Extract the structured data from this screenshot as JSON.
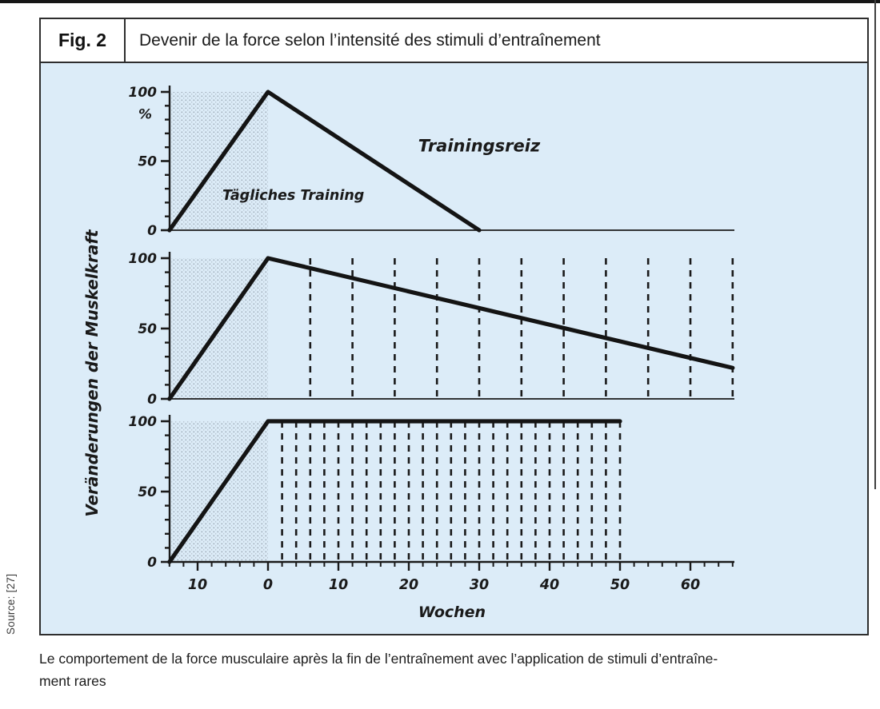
{
  "figure": {
    "label": "Fig. 2",
    "title": "Devenir de la force selon l’intensité des stimuli d’entraînement"
  },
  "source": "Source: [27]",
  "caption": {
    "line1": "Le comportement de la force musculaire après la fin de l’entraînement avec l’application de stimuli d’entraîne-",
    "line2": "ment rares"
  },
  "colors": {
    "panel_bg": "#dcecf8",
    "data_line": "#141414",
    "axis": "#1a1a1a",
    "stipple_dot": "#8f9aa6",
    "box_border": "#2e2e2e"
  },
  "chart_data": {
    "type": "line",
    "shared": {
      "xlabel": "Wochen",
      "ylabel": "Veränderungen der Muskelkraft",
      "xlim_weeks": [
        -14,
        66
      ],
      "ylim_percent": [
        0,
        100
      ],
      "x_minor_tick_step_weeks": 2,
      "x_ticks": [
        {
          "week": -10,
          "label": "10"
        },
        {
          "week": 0,
          "label": "0"
        },
        {
          "week": 10,
          "label": "10"
        },
        {
          "week": 20,
          "label": "20"
        },
        {
          "week": 30,
          "label": "30"
        },
        {
          "week": 40,
          "label": "40"
        },
        {
          "week": 50,
          "label": "50"
        },
        {
          "week": 60,
          "label": "60"
        }
      ],
      "grid": "off",
      "legend": "none"
    },
    "subplots": [
      {
        "name": "training-stimulus-once",
        "points_week_percent": [
          [
            -14,
            0
          ],
          [
            0,
            100
          ],
          [
            30,
            0
          ]
        ],
        "shaded_training_region_weeks": [
          -14,
          0
        ],
        "stimulus_dashed_weeks": [],
        "y_ticks": [
          {
            "percent": 100,
            "label": "100"
          },
          {
            "percent": 50,
            "label": "50"
          },
          {
            "percent": 0,
            "label": "0"
          }
        ],
        "y_unit_label": "%",
        "annotations": [
          {
            "text": "Tägliches Training",
            "week": 3.6,
            "percent": 22,
            "size": 17.5
          },
          {
            "text": "Trainingsreiz",
            "week": 30,
            "percent": 57,
            "size": 21
          }
        ]
      },
      {
        "name": "stimulus-every-6-weeks",
        "points_week_percent": [
          [
            -14,
            0
          ],
          [
            0,
            100
          ],
          [
            66,
            22
          ]
        ],
        "shaded_training_region_weeks": [
          -14,
          0
        ],
        "stimulus_dashed_weeks": [
          6,
          12,
          18,
          24,
          30,
          36,
          42,
          48,
          54,
          60,
          66
        ],
        "y_ticks": [
          {
            "percent": 100,
            "label": "100"
          },
          {
            "percent": 50,
            "label": "50"
          },
          {
            "percent": 0,
            "label": "0"
          }
        ],
        "y_unit_label": "",
        "annotations": []
      },
      {
        "name": "stimulus-every-2-weeks",
        "points_week_percent": [
          [
            -14,
            0
          ],
          [
            0,
            100
          ],
          [
            50,
            100
          ]
        ],
        "shaded_training_region_weeks": [
          -14,
          0
        ],
        "stimulus_dashed_weeks": [
          2,
          4,
          6,
          8,
          10,
          12,
          14,
          16,
          18,
          20,
          22,
          24,
          26,
          28,
          30,
          32,
          34,
          36,
          38,
          40,
          42,
          44,
          46,
          48,
          50
        ],
        "y_ticks": [
          {
            "percent": 100,
            "label": "100"
          },
          {
            "percent": 50,
            "label": "50"
          },
          {
            "percent": 0,
            "label": "0"
          }
        ],
        "y_unit_label": "",
        "annotations": []
      }
    ]
  }
}
